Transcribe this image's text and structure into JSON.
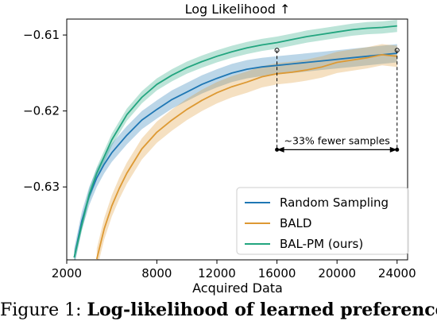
{
  "chart_data": {
    "type": "line",
    "title": "Log Likelihood ↑",
    "xlabel": "Acquired Data",
    "ylabel": "",
    "xlim": [
      2000,
      24700
    ],
    "ylim": [
      -0.6396,
      -0.6079
    ],
    "xticks": [
      2000,
      8000,
      12000,
      16000,
      20000,
      24000
    ],
    "xtick_labels": [
      "2000",
      "8000",
      "12000",
      "16000",
      "20000",
      "24000"
    ],
    "yticks": [
      -0.61,
      -0.62,
      -0.63
    ],
    "ytick_labels": [
      "−0.61",
      "−0.62",
      "−0.63"
    ],
    "grid": false,
    "legend_position": "lower-right",
    "series": [
      {
        "name": "Random Sampling",
        "color": "#1f77b4",
        "x": [
          2500,
          3000,
          3500,
          4000,
          4500,
          5000,
          6000,
          7000,
          8000,
          9000,
          10000,
          11000,
          12000,
          13000,
          14000,
          15000,
          16000,
          17000,
          18000,
          19000,
          20000,
          21000,
          22000,
          23000,
          24000
        ],
        "y": [
          -0.6393,
          -0.6345,
          -0.6312,
          -0.6288,
          -0.627,
          -0.6255,
          -0.6232,
          -0.6212,
          -0.6198,
          -0.6185,
          -0.6175,
          -0.6165,
          -0.6157,
          -0.615,
          -0.6145,
          -0.6142,
          -0.614,
          -0.6138,
          -0.6136,
          -0.6134,
          -0.6132,
          -0.613,
          -0.6128,
          -0.6126,
          -0.6124
        ],
        "band": 0.0012
      },
      {
        "name": "BALD",
        "color": "#dd9933",
        "x": [
          4000,
          4500,
          5000,
          5500,
          6000,
          7000,
          8000,
          9000,
          10000,
          11000,
          12000,
          13000,
          14000,
          15000,
          16000,
          17000,
          18000,
          19000,
          20000,
          21000,
          22000,
          23000,
          24000
        ],
        "y": [
          -0.6395,
          -0.6355,
          -0.6325,
          -0.6302,
          -0.6282,
          -0.625,
          -0.6228,
          -0.6212,
          -0.6198,
          -0.6186,
          -0.6176,
          -0.6168,
          -0.6162,
          -0.6155,
          -0.6151,
          -0.6149,
          -0.6146,
          -0.6142,
          -0.6136,
          -0.6133,
          -0.613,
          -0.6126,
          -0.6128
        ],
        "band": 0.0014
      },
      {
        "name": "BAL-PM (ours)",
        "color": "#22a57f",
        "x": [
          2500,
          3000,
          3500,
          4000,
          4500,
          5000,
          6000,
          7000,
          8000,
          9000,
          10000,
          11000,
          12000,
          13000,
          14000,
          15000,
          16000,
          17000,
          18000,
          19000,
          20000,
          21000,
          22000,
          23000,
          24000
        ],
        "y": [
          -0.6393,
          -0.635,
          -0.631,
          -0.6282,
          -0.626,
          -0.6238,
          -0.6205,
          -0.6182,
          -0.6165,
          -0.6153,
          -0.6143,
          -0.6135,
          -0.6128,
          -0.6122,
          -0.6117,
          -0.6113,
          -0.611,
          -0.6106,
          -0.6102,
          -0.6099,
          -0.6096,
          -0.6093,
          -0.6091,
          -0.609,
          -0.6088
        ],
        "band": 0.0008
      }
    ],
    "annotations": [
      {
        "text": "~33% fewer samples",
        "x_from": 16000,
        "x_to": 24000,
        "arrow_y": -0.6251,
        "marker_y": -0.612,
        "style": "dashed vertical lines with double-headed arrow"
      }
    ]
  },
  "caption": {
    "prefix": "Figure 1: ",
    "bold_text": "Log-likelihood of learned preference"
  }
}
